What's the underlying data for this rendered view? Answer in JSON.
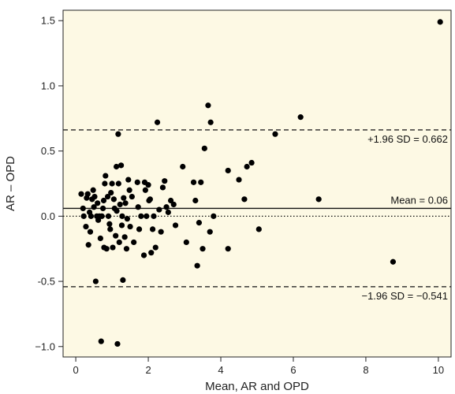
{
  "chart_data": {
    "type": "scatter",
    "title": "",
    "xlabel": "Mean, AR and OPD",
    "ylabel": "AR – OPD",
    "xlim": [
      -0.35,
      10.35
    ],
    "ylim": [
      -1.08,
      1.58
    ],
    "x_ticks": [
      0,
      2,
      4,
      6,
      8,
      10
    ],
    "x_tick_labels": [
      "0",
      "2",
      "4",
      "6",
      "8",
      "10"
    ],
    "y_ticks": [
      -1.0,
      -0.5,
      0.0,
      0.5,
      1.0,
      1.5
    ],
    "y_tick_labels": [
      "−1.0",
      "-0.5",
      "0.0",
      "0.5",
      "1.0",
      "1.5"
    ],
    "grid": false,
    "background_color": "#fdf9e4",
    "point_color": "#000000",
    "reference_lines": [
      {
        "name": "upper",
        "y": 0.662,
        "style": "dashed",
        "label": "+1.96 SD = 0.662"
      },
      {
        "name": "mean",
        "y": 0.06,
        "style": "solid",
        "label": "Mean = 0.06"
      },
      {
        "name": "zero",
        "y": 0.0,
        "style": "dotted",
        "label": ""
      },
      {
        "name": "lower",
        "y": -0.541,
        "style": "dashed",
        "label": "−1.96 SD = −0.541"
      }
    ],
    "points": [
      [
        0.15,
        0.17
      ],
      [
        0.2,
        0.06
      ],
      [
        0.22,
        0.0
      ],
      [
        0.28,
        -0.08
      ],
      [
        0.3,
        0.14
      ],
      [
        0.33,
        0.17
      ],
      [
        0.35,
        -0.22
      ],
      [
        0.38,
        0.03
      ],
      [
        0.4,
        -0.12
      ],
      [
        0.42,
        0.0
      ],
      [
        0.45,
        0.13
      ],
      [
        0.48,
        0.2
      ],
      [
        0.5,
        0.07
      ],
      [
        0.52,
        0.15
      ],
      [
        0.55,
        -0.5
      ],
      [
        0.58,
        0.0
      ],
      [
        0.6,
        0.1
      ],
      [
        0.62,
        -0.03
      ],
      [
        0.65,
        0.0
      ],
      [
        0.68,
        -0.17
      ],
      [
        0.7,
        -0.96
      ],
      [
        0.72,
        0.0
      ],
      [
        0.75,
        0.06
      ],
      [
        0.77,
        0.12
      ],
      [
        0.78,
        -0.24
      ],
      [
        0.8,
        0.25
      ],
      [
        0.82,
        0.31
      ],
      [
        0.85,
        -0.25
      ],
      [
        0.88,
        0.15
      ],
      [
        0.9,
        0.0
      ],
      [
        0.93,
        -0.06
      ],
      [
        0.95,
        -0.1
      ],
      [
        0.97,
        0.18
      ],
      [
        1.0,
        0.25
      ],
      [
        1.02,
        -0.24
      ],
      [
        1.05,
        0.13
      ],
      [
        1.07,
        0.06
      ],
      [
        1.1,
        -0.15
      ],
      [
        1.12,
        0.38
      ],
      [
        1.13,
        0.04
      ],
      [
        1.15,
        -0.98
      ],
      [
        1.17,
        0.63
      ],
      [
        1.18,
        0.25
      ],
      [
        1.2,
        -0.2
      ],
      [
        1.22,
        0.09
      ],
      [
        1.25,
        0.39
      ],
      [
        1.27,
        -0.07
      ],
      [
        1.28,
        0.0
      ],
      [
        1.3,
        -0.49
      ],
      [
        1.32,
        0.14
      ],
      [
        1.35,
        -0.16
      ],
      [
        1.37,
        0.1
      ],
      [
        1.4,
        -0.25
      ],
      [
        1.42,
        -0.02
      ],
      [
        1.45,
        0.28
      ],
      [
        1.48,
        0.2
      ],
      [
        1.5,
        -0.08
      ],
      [
        1.55,
        0.15
      ],
      [
        1.6,
        -0.2
      ],
      [
        1.7,
        0.26
      ],
      [
        1.72,
        0.07
      ],
      [
        1.75,
        -0.1
      ],
      [
        1.8,
        0.0
      ],
      [
        1.88,
        -0.3
      ],
      [
        1.9,
        0.26
      ],
      [
        1.92,
        0.2
      ],
      [
        1.95,
        0.0
      ],
      [
        2.0,
        0.24
      ],
      [
        2.02,
        0.12
      ],
      [
        2.05,
        0.13
      ],
      [
        2.08,
        -0.28
      ],
      [
        2.12,
        -0.1
      ],
      [
        2.15,
        0.0
      ],
      [
        2.2,
        -0.24
      ],
      [
        2.25,
        0.72
      ],
      [
        2.3,
        0.05
      ],
      [
        2.35,
        -0.12
      ],
      [
        2.4,
        0.22
      ],
      [
        2.45,
        0.27
      ],
      [
        2.5,
        0.07
      ],
      [
        2.55,
        0.03
      ],
      [
        2.62,
        0.12
      ],
      [
        2.7,
        0.09
      ],
      [
        2.75,
        -0.07
      ],
      [
        2.95,
        0.38
      ],
      [
        3.05,
        -0.2
      ],
      [
        3.25,
        0.26
      ],
      [
        3.3,
        0.12
      ],
      [
        3.35,
        -0.38
      ],
      [
        3.4,
        -0.05
      ],
      [
        3.45,
        0.26
      ],
      [
        3.5,
        -0.25
      ],
      [
        3.55,
        0.52
      ],
      [
        3.65,
        0.85
      ],
      [
        3.7,
        -0.12
      ],
      [
        3.72,
        0.72
      ],
      [
        3.8,
        0.0
      ],
      [
        4.2,
        -0.25
      ],
      [
        4.2,
        0.35
      ],
      [
        4.5,
        0.28
      ],
      [
        4.65,
        0.13
      ],
      [
        4.72,
        0.38
      ],
      [
        4.85,
        0.41
      ],
      [
        5.05,
        -0.1
      ],
      [
        5.5,
        0.63
      ],
      [
        6.2,
        0.76
      ],
      [
        6.7,
        0.13
      ],
      [
        8.75,
        -0.35
      ],
      [
        10.05,
        1.49
      ]
    ]
  }
}
